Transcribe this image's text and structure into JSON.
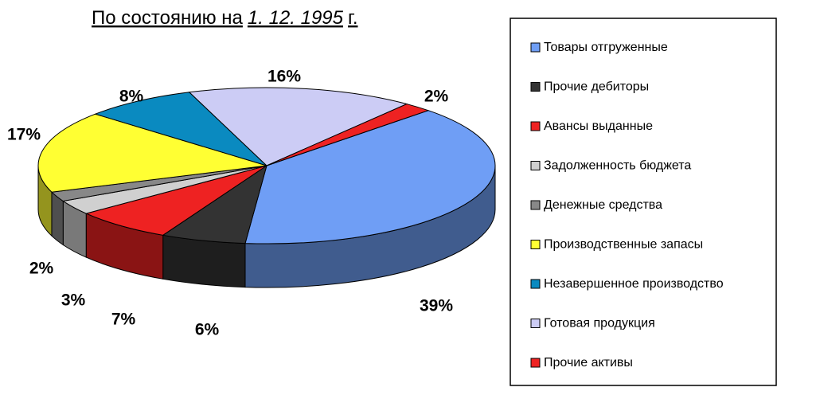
{
  "chart_data": {
    "type": "pie3d",
    "title": [
      "По состоянию на",
      "1. 12. 1995",
      "г."
    ],
    "categories": [
      "Товары отгруженные",
      "Прочие дебиторы",
      "Авансы выданные",
      "Задолженность бюджета",
      "Денежные средства",
      "Производственные запасы",
      "Незавершенное производство",
      "Готовая продукция",
      "Прочие активы"
    ],
    "values": [
      39,
      6,
      7,
      3,
      2,
      17,
      8,
      16,
      2
    ],
    "value_labels": [
      "39%",
      "6%",
      "7%",
      "3%",
      "2%",
      "17%",
      "8%",
      "16%",
      "2%"
    ],
    "colors": [
      "#6f9ef5",
      "#333333",
      "#ee2222",
      "#d0d0d0",
      "#888888",
      "#ffff33",
      "#0a8ac0",
      "#ccccf5",
      "#ee2222"
    ],
    "legend": "right"
  }
}
